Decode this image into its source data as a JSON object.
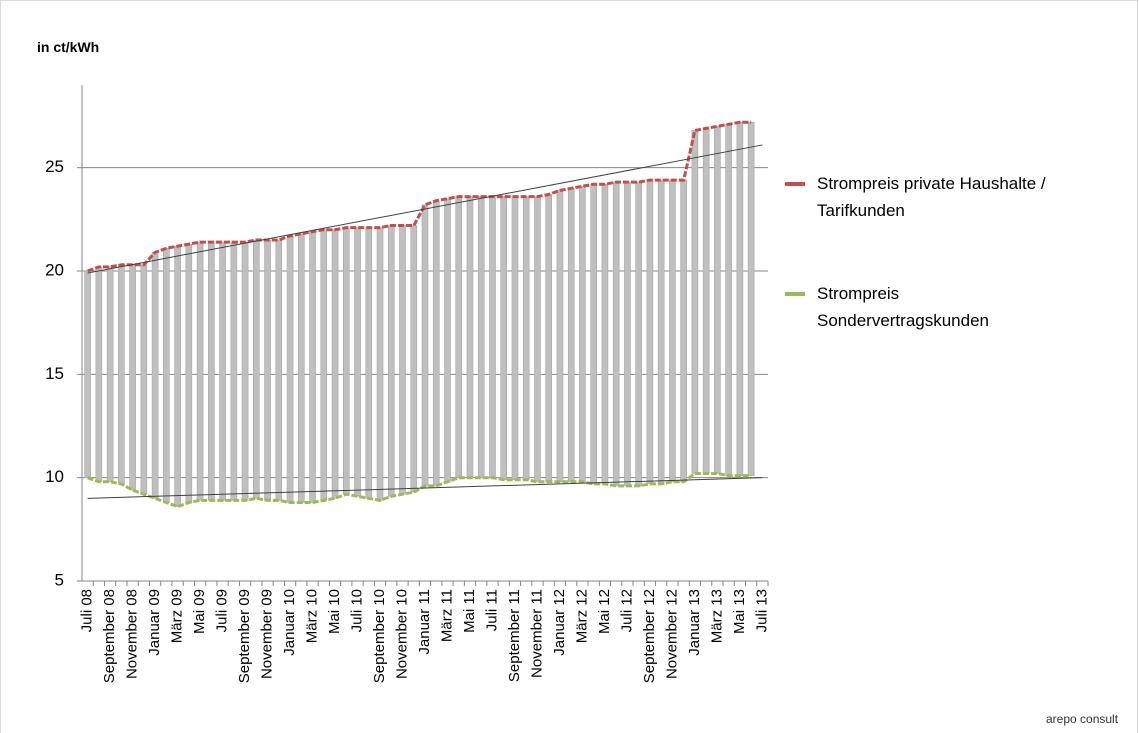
{
  "chart_data": {
    "type": "line",
    "y_label": "in ct/kWh",
    "categories": [
      "Juli 08",
      null,
      "September 08",
      null,
      "November 08",
      null,
      "Januar 09",
      null,
      "März 09",
      null,
      "Mai 09",
      null,
      "Juli 09",
      null,
      "September 09",
      null,
      "November 09",
      null,
      "Januar 10",
      null,
      "März 10",
      null,
      "Mai 10",
      null,
      "Juli 10",
      null,
      "September 10",
      null,
      "November 10",
      null,
      "Januar 11",
      null,
      "März 11",
      null,
      "Mai 11",
      null,
      "Juli 11",
      null,
      "September 11",
      null,
      "November 11",
      null,
      "Januar 12",
      null,
      "März 12",
      null,
      "Mai 12",
      null,
      "Juli 12",
      null,
      "September 12",
      null,
      "November 12",
      null,
      "Januar 13",
      null,
      "März 13",
      null,
      "Mai 13",
      null,
      "Juli 13"
    ],
    "series": [
      {
        "name": "Strompreis private Haushalte / Tarifkunden",
        "color": "#c0504d",
        "values": [
          20.0,
          20.2,
          20.2,
          20.3,
          20.3,
          20.3,
          20.9,
          21.1,
          21.2,
          21.3,
          21.4,
          21.4,
          21.4,
          21.4,
          21.4,
          21.5,
          21.5,
          21.5,
          21.7,
          21.8,
          21.9,
          22.0,
          22.0,
          22.1,
          22.1,
          22.1,
          22.1,
          22.2,
          22.2,
          22.2,
          23.2,
          23.4,
          23.5,
          23.6,
          23.6,
          23.6,
          23.6,
          23.6,
          23.6,
          23.6,
          23.6,
          23.7,
          23.9,
          24.0,
          24.1,
          24.2,
          24.2,
          24.3,
          24.3,
          24.3,
          24.4,
          24.4,
          24.4,
          24.4,
          26.8,
          26.9,
          27.0,
          27.1,
          27.2,
          27.2,
          null
        ],
        "trend": [
          19.9,
          26.1
        ]
      },
      {
        "name": "Strompreis Sondervertragskunden",
        "color": "#9bbb59",
        "values": [
          10.0,
          9.8,
          9.8,
          9.7,
          9.4,
          9.2,
          9.0,
          8.8,
          8.6,
          8.8,
          8.9,
          8.9,
          8.9,
          8.9,
          8.9,
          9.0,
          8.9,
          8.9,
          8.8,
          8.8,
          8.8,
          8.9,
          9.0,
          9.2,
          9.1,
          9.0,
          8.9,
          9.1,
          9.2,
          9.3,
          9.6,
          9.6,
          9.8,
          10.0,
          10.0,
          10.0,
          10.0,
          9.9,
          9.9,
          9.9,
          9.8,
          9.8,
          9.8,
          9.8,
          9.8,
          9.7,
          9.7,
          9.6,
          9.6,
          9.6,
          9.7,
          9.7,
          9.8,
          9.8,
          10.2,
          10.2,
          10.2,
          10.1,
          10.1,
          10.1,
          null
        ],
        "trend": [
          9.0,
          10.0
        ]
      }
    ],
    "ylim": [
      5,
      29
    ],
    "yticks": [
      5,
      10,
      15,
      20,
      25
    ],
    "grid": true,
    "legend": "right",
    "high_low_color": "#bfbfbf"
  },
  "logo": "arepo consult"
}
